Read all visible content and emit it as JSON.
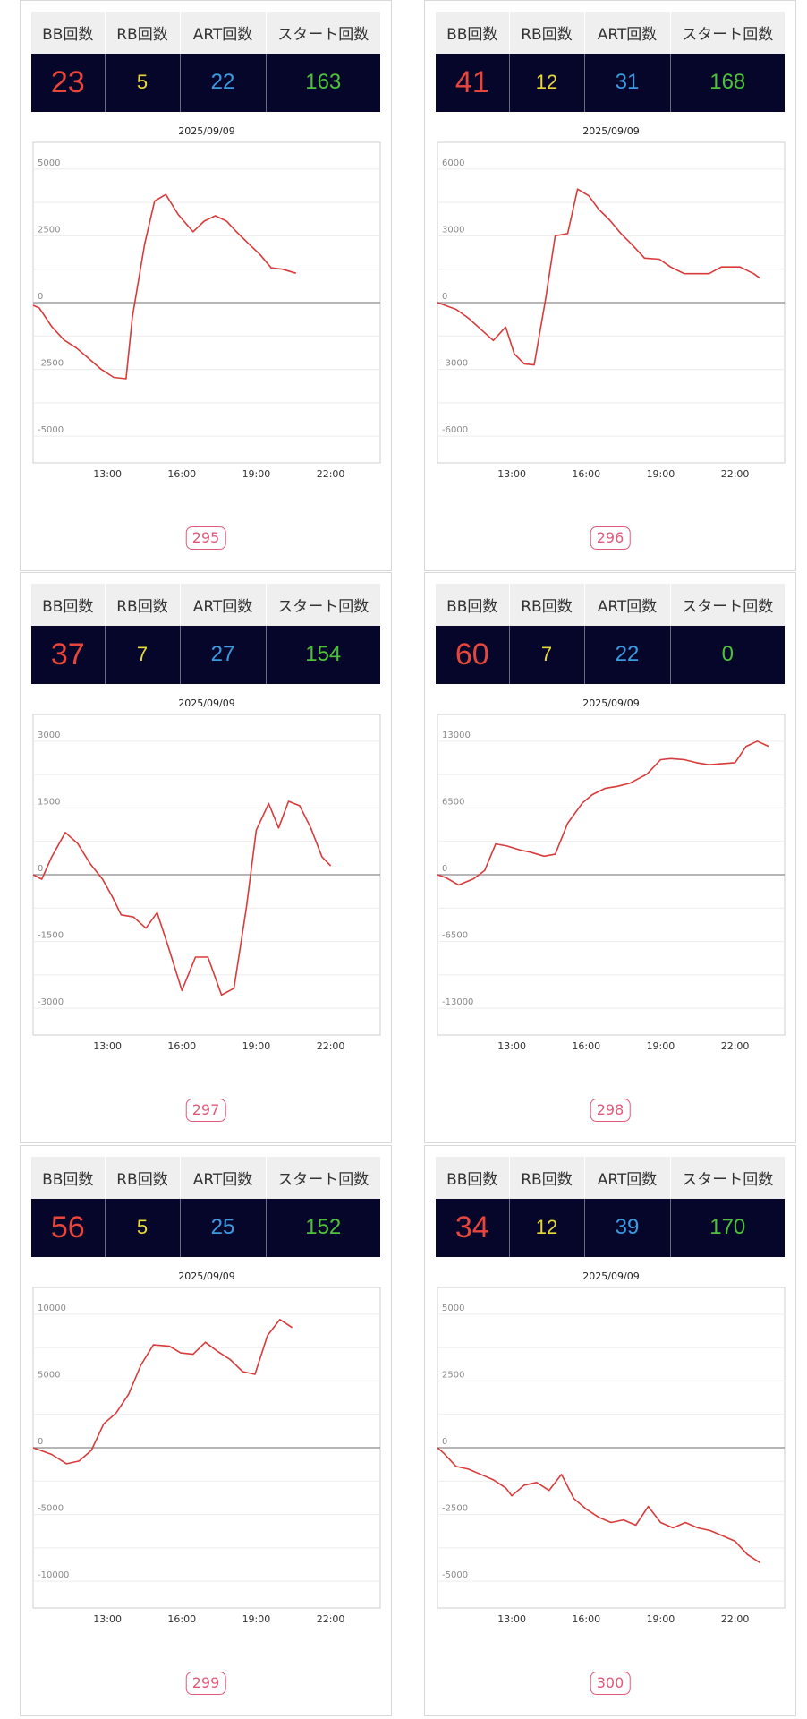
{
  "labels": {
    "bb": "BB回数",
    "rb": "RB回数",
    "art": "ART回数",
    "start": "スタート回数"
  },
  "colors": {
    "bb": "#e8453c",
    "rb": "#e9d83a",
    "art": "#3a9be0",
    "start": "#4cc23a",
    "line": "#d93b3b",
    "badge": "#e05a7a"
  },
  "machines": [
    {
      "number": "295",
      "stats": {
        "bb": "23",
        "rb": "5",
        "art": "22",
        "start": "163"
      },
      "chart_data": {
        "type": "line",
        "title": "2025/09/09",
        "ylim": [
          -6000,
          6000
        ],
        "yticks": [
          5000,
          2500,
          0,
          -2500,
          -5000
        ],
        "xlim": [
          10,
          24
        ],
        "xticks": [
          13,
          16,
          19,
          22
        ],
        "xtick_labels": [
          "13:00",
          "16:00",
          "19:00",
          "22:00"
        ],
        "series": [
          {
            "x": [
              10.0,
              10.25,
              10.75,
              11.25,
              11.75,
              12.25,
              12.75,
              13.25,
              13.75,
              14.0,
              14.5,
              14.9,
              15.35,
              15.85,
              16.45,
              16.9,
              17.35,
              17.8,
              18.2,
              18.7,
              19.15,
              19.6,
              20.05,
              20.6
            ],
            "y": [
              -100,
              -200,
              -900,
              -1400,
              -1700,
              -2100,
              -2500,
              -2800,
              -2850,
              -550,
              2200,
              3800,
              4050,
              3300,
              2650,
              3050,
              3250,
              3050,
              2650,
              2200,
              1800,
              1300,
              1250,
              1100
            ]
          }
        ]
      }
    },
    {
      "number": "296",
      "stats": {
        "bb": "41",
        "rb": "12",
        "art": "31",
        "start": "168"
      },
      "chart_data": {
        "type": "line",
        "title": "2025/09/09",
        "ylim": [
          -7200,
          7200
        ],
        "yticks": [
          6000,
          3000,
          0,
          -3000,
          -6000
        ],
        "xlim": [
          10,
          24
        ],
        "xticks": [
          13,
          16,
          19,
          22
        ],
        "xtick_labels": [
          "13:00",
          "16:00",
          "19:00",
          "22:00"
        ],
        "series": [
          {
            "x": [
              10.0,
              10.75,
              11.25,
              11.75,
              12.25,
              12.75,
              13.1,
              13.5,
              13.9,
              14.35,
              14.75,
              15.25,
              15.65,
              16.1,
              16.5,
              16.95,
              17.4,
              17.85,
              18.35,
              18.95,
              19.4,
              19.95,
              20.55,
              20.95,
              21.45,
              22.2,
              22.75,
              23.0
            ],
            "y": [
              0,
              -300,
              -700,
              -1200,
              -1700,
              -1100,
              -2300,
              -2750,
              -2800,
              100,
              3000,
              3100,
              5100,
              4800,
              4200,
              3700,
              3100,
              2600,
              2000,
              1950,
              1600,
              1300,
              1300,
              1300,
              1600,
              1600,
              1300,
              1100
            ]
          }
        ]
      }
    },
    {
      "number": "297",
      "stats": {
        "bb": "37",
        "rb": "7",
        "art": "27",
        "start": "154"
      },
      "chart_data": {
        "type": "line",
        "title": "2025/09/09",
        "ylim": [
          -3600,
          3600
        ],
        "yticks": [
          3000,
          1500,
          0,
          -1500,
          -3000
        ],
        "xlim": [
          10,
          24
        ],
        "xticks": [
          13,
          16,
          19,
          22
        ],
        "xtick_labels": [
          "13:00",
          "16:00",
          "19:00",
          "22:00"
        ],
        "series": [
          {
            "x": [
              10.0,
              10.35,
              10.75,
              11.3,
              11.8,
              12.3,
              12.8,
              13.2,
              13.55,
              14.05,
              14.55,
              15.0,
              15.5,
              16.0,
              16.55,
              17.05,
              17.6,
              18.1,
              18.6,
              19.0,
              19.5,
              19.9,
              20.3,
              20.75,
              21.2,
              21.65,
              22.0
            ],
            "y": [
              0,
              -100,
              400,
              950,
              700,
              250,
              -100,
              -500,
              -900,
              -950,
              -1200,
              -850,
              -1700,
              -2600,
              -1850,
              -1850,
              -2700,
              -2550,
              -750,
              1000,
              1600,
              1050,
              1650,
              1550,
              1050,
              400,
              200
            ]
          }
        ]
      }
    },
    {
      "number": "298",
      "stats": {
        "bb": "60",
        "rb": "7",
        "art": "22",
        "start": "0"
      },
      "chart_data": {
        "type": "line",
        "title": "2025/09/09",
        "ylim": [
          -15600,
          15600
        ],
        "yticks": [
          13000,
          6500,
          0,
          -6500,
          -13000
        ],
        "xlim": [
          10,
          24
        ],
        "xticks": [
          13,
          16,
          19,
          22
        ],
        "xtick_labels": [
          "13:00",
          "16:00",
          "19:00",
          "22:00"
        ],
        "series": [
          {
            "x": [
              10.0,
              10.35,
              10.85,
              11.45,
              11.9,
              12.35,
              12.8,
              13.35,
              13.75,
              14.3,
              14.75,
              15.25,
              15.85,
              16.25,
              16.75,
              17.25,
              17.75,
              18.45,
              19.0,
              19.4,
              19.95,
              20.45,
              20.95,
              21.45,
              22.0,
              22.45,
              22.9,
              23.35
            ],
            "y": [
              0,
              -300,
              -1000,
              -400,
              400,
              3000,
              2800,
              2400,
              2200,
              1800,
              2000,
              5000,
              7000,
              7800,
              8400,
              8600,
              8900,
              9800,
              11200,
              11300,
              11200,
              10900,
              10700,
              10800,
              10900,
              12500,
              13000,
              12500
            ]
          }
        ]
      }
    },
    {
      "number": "299",
      "stats": {
        "bb": "56",
        "rb": "5",
        "art": "25",
        "start": "152"
      },
      "chart_data": {
        "type": "line",
        "title": "2025/09/09",
        "ylim": [
          -12000,
          12000
        ],
        "yticks": [
          10000,
          5000,
          0,
          -5000,
          -10000
        ],
        "xlim": [
          10,
          24
        ],
        "xticks": [
          13,
          16,
          19,
          22
        ],
        "xtick_labels": [
          "13:00",
          "16:00",
          "19:00",
          "22:00"
        ],
        "series": [
          {
            "x": [
              10.0,
              10.75,
              11.35,
              11.85,
              12.35,
              12.85,
              13.35,
              13.85,
              14.35,
              14.85,
              15.5,
              15.95,
              16.45,
              16.95,
              17.45,
              17.95,
              18.45,
              18.95,
              19.45,
              19.95,
              20.45
            ],
            "y": [
              0,
              -500,
              -1200,
              -1000,
              -200,
              1800,
              2600,
              4000,
              6200,
              7700,
              7600,
              7100,
              7000,
              7900,
              7200,
              6600,
              5700,
              5500,
              8400,
              9600,
              9000
            ]
          }
        ]
      }
    },
    {
      "number": "300",
      "stats": {
        "bb": "34",
        "rb": "12",
        "art": "39",
        "start": "170"
      },
      "chart_data": {
        "type": "line",
        "title": "2025/09/09",
        "ylim": [
          -6000,
          6000
        ],
        "yticks": [
          5000,
          2500,
          0,
          -2500,
          -5000
        ],
        "xlim": [
          10,
          24
        ],
        "xticks": [
          13,
          16,
          19,
          22
        ],
        "xtick_labels": [
          "13:00",
          "16:00",
          "19:00",
          "22:00"
        ],
        "series": [
          {
            "x": [
              10.0,
              10.25,
              10.75,
              11.25,
              11.75,
              12.25,
              12.75,
              13.0,
              13.5,
              14.0,
              14.5,
              15.0,
              15.5,
              16.0,
              16.5,
              17.0,
              17.5,
              18.0,
              18.5,
              19.0,
              19.5,
              20.0,
              20.5,
              21.0,
              21.5,
              22.0,
              22.5,
              23.0
            ],
            "y": [
              0,
              -200,
              -700,
              -800,
              -1000,
              -1200,
              -1500,
              -1800,
              -1400,
              -1300,
              -1600,
              -1000,
              -1900,
              -2300,
              -2600,
              -2800,
              -2700,
              -2900,
              -2200,
              -2800,
              -3000,
              -2800,
              -3000,
              -3100,
              -3300,
              -3500,
              -4000,
              -4300
            ]
          }
        ]
      }
    }
  ]
}
